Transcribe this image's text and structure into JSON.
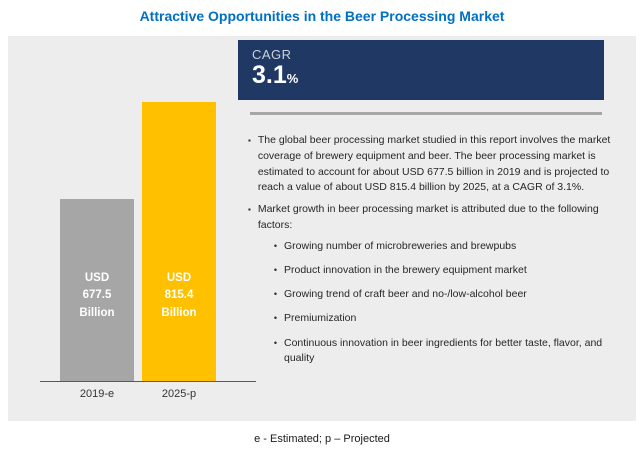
{
  "title": "Attractive Opportunities in the Beer Processing Market",
  "cagr": {
    "label": "CAGR",
    "value": "3.1",
    "unit": "%"
  },
  "chart_data": {
    "type": "bar",
    "categories": [
      "2019-e",
      "2025-p"
    ],
    "values": [
      677.5,
      815.4
    ],
    "unit": "USD Billion",
    "bar_labels": [
      "USD\n677.5\nBillion",
      "USD\n815.4\nBillion"
    ],
    "colors": [
      "#A6A6A6",
      "#FFC000"
    ],
    "title": "Attractive Opportunities in the Beer Processing Market",
    "xlabel": "",
    "ylabel": "",
    "legend": "none",
    "grid": "off"
  },
  "bullets": [
    {
      "text": "The global beer processing market studied in this report involves the market coverage of brewery equipment and beer. The beer processing market is estimated to account for about USD 677.5 billion in 2019 and is projected to reach a value of about USD 815.4 billion by 2025, at a CAGR of 3.1%.",
      "sub": []
    },
    {
      "text": "Market growth in beer processing market is attributed due to the following factors:",
      "sub": [
        "Growing number of microbreweries and brewpubs",
        "Product innovation in the brewery equipment market",
        "Growing trend of craft beer and no-/low-alcohol beer",
        "Premiumization",
        "Continuous innovation in beer ingredients for better taste, flavor, and quality"
      ]
    }
  ],
  "markers": {
    "main": "▪",
    "sub": "•"
  },
  "colors": {
    "title": "#0070C0",
    "cagr_box": "#1F3864",
    "panel_bg": "#EDEDED",
    "bar_2019": "#A6A6A6",
    "bar_2025": "#FFC000"
  },
  "footnote": "e - Estimated; p – Projected"
}
